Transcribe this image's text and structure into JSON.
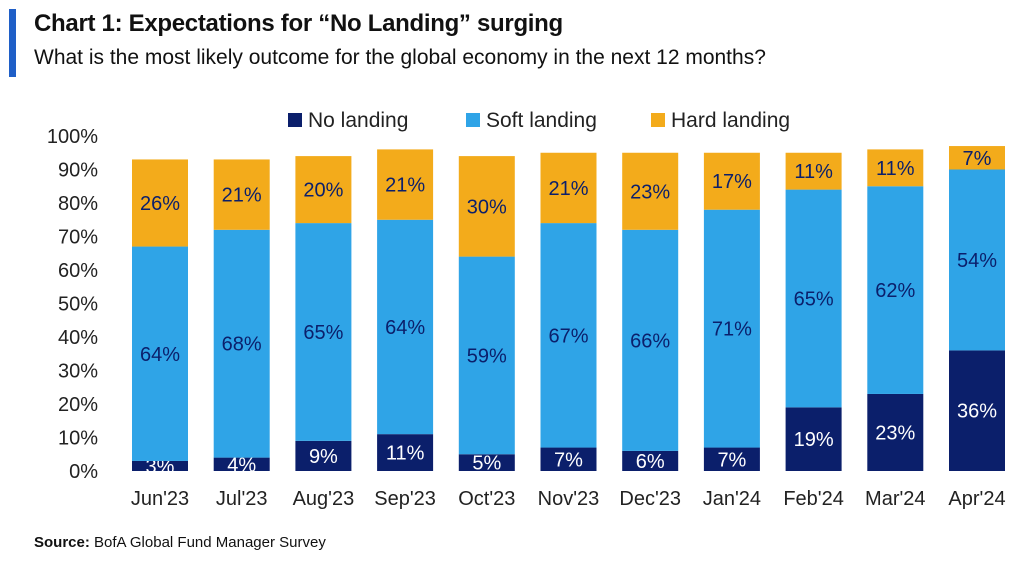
{
  "header": {
    "title": "Chart 1: Expectations for “No Landing” surging",
    "subtitle": "What is the most likely outcome for the global economy in the next 12 months?"
  },
  "footer": {
    "source_label": "Source:",
    "source_text": "BofA Global Fund Manager Survey"
  },
  "colors": {
    "accent": "#1f5fc7",
    "no_landing": "#0b1f6b",
    "soft_landing": "#2fa4e7",
    "hard_landing": "#f3ab1b"
  },
  "chart_data": {
    "type": "bar",
    "stacked": true,
    "title": "Chart 1: Expectations for “No Landing” surging",
    "subtitle": "What is the most likely outcome for the global economy in the next 12 months?",
    "categories": [
      "Jun'23",
      "Jul'23",
      "Aug'23",
      "Sep'23",
      "Oct'23",
      "Nov'23",
      "Dec'23",
      "Jan'24",
      "Feb'24",
      "Mar'24",
      "Apr'24"
    ],
    "series": [
      {
        "name": "No landing",
        "color": "#0b1f6b",
        "values": [
          3,
          4,
          9,
          11,
          5,
          7,
          6,
          7,
          19,
          23,
          36
        ],
        "labels": [
          "3%",
          "4%",
          "9%",
          "11%",
          "5%",
          "7%",
          "6%",
          "7%",
          "19%",
          "23%",
          "36%"
        ]
      },
      {
        "name": "Soft landing",
        "color": "#2fa4e7",
        "values": [
          64,
          68,
          65,
          64,
          59,
          67,
          66,
          71,
          65,
          62,
          54
        ],
        "labels": [
          "64%",
          "68%",
          "65%",
          "64%",
          "59%",
          "67%",
          "66%",
          "71%",
          "65%",
          "62%",
          "54%"
        ]
      },
      {
        "name": "Hard landing",
        "color": "#f3ab1b",
        "values": [
          26,
          21,
          20,
          21,
          30,
          21,
          23,
          17,
          11,
          11,
          7
        ],
        "labels": [
          "26%",
          "21%",
          "20%",
          "21%",
          "30%",
          "21%",
          "23%",
          "17%",
          "11%",
          "11%",
          "7%"
        ]
      }
    ],
    "ylim": [
      0,
      100
    ],
    "yticks": [
      "0%",
      "10%",
      "20%",
      "30%",
      "40%",
      "50%",
      "60%",
      "70%",
      "80%",
      "90%",
      "100%"
    ],
    "xlabel": "",
    "ylabel": "",
    "grid": false,
    "legend_position": "top-center"
  }
}
